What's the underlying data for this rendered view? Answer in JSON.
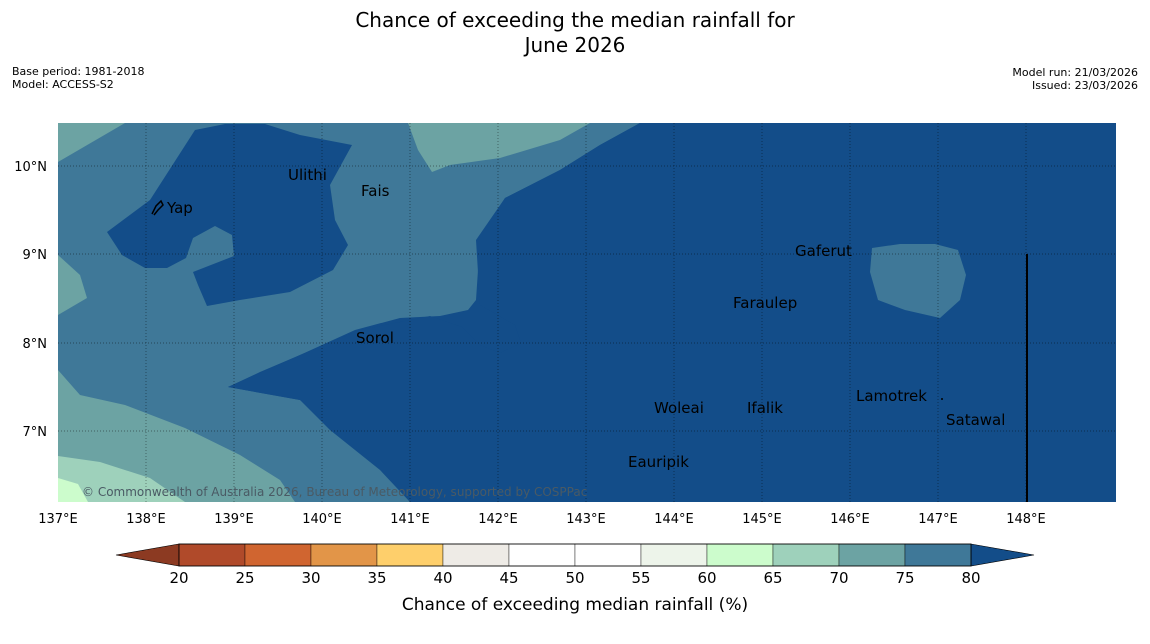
{
  "title": {
    "line1": "Chance of exceeding the median rainfall for",
    "line2": "June 2026"
  },
  "meta": {
    "base_period": "Base period: 1981-2018",
    "model": "Model: ACCESS-S2",
    "model_run": "Model run: 21/03/2026",
    "issued": "Issued: 23/03/2026"
  },
  "map": {
    "lon_ticks": [
      "137°E",
      "138°E",
      "139°E",
      "140°E",
      "141°E",
      "142°E",
      "143°E",
      "144°E",
      "145°E",
      "146°E",
      "147°E",
      "148°E"
    ],
    "lat_ticks": [
      "10°N",
      "9°N",
      "8°N",
      "7°N"
    ],
    "places": [
      "Yap",
      "Ulithi",
      "Fais",
      "Gaferut",
      "Faraulep",
      "Sorol",
      "Woleai",
      "Ifalik",
      "Lamotrek",
      "Satawal",
      "Eauripik"
    ],
    "copyright": "© Commonwealth of Australia 2026, Bureau of Meteorology, supported by COSPPac"
  },
  "colorbar": {
    "ticks": [
      "20",
      "25",
      "30",
      "35",
      "40",
      "45",
      "50",
      "55",
      "60",
      "65",
      "70",
      "75",
      "80"
    ],
    "colors": [
      "#b04a2a",
      "#d06530",
      "#e29548",
      "#fecf6b",
      "#eeebe6",
      "#ffffff",
      "#ffffff",
      "#edf4ea",
      "#ccfccc",
      "#9ed1bb",
      "#6ca3a3",
      "#3f7898"
    ],
    "low_color": "#8c3a22",
    "high_color": "#134d89",
    "label": "Chance of exceeding median rainfall (%)"
  }
}
